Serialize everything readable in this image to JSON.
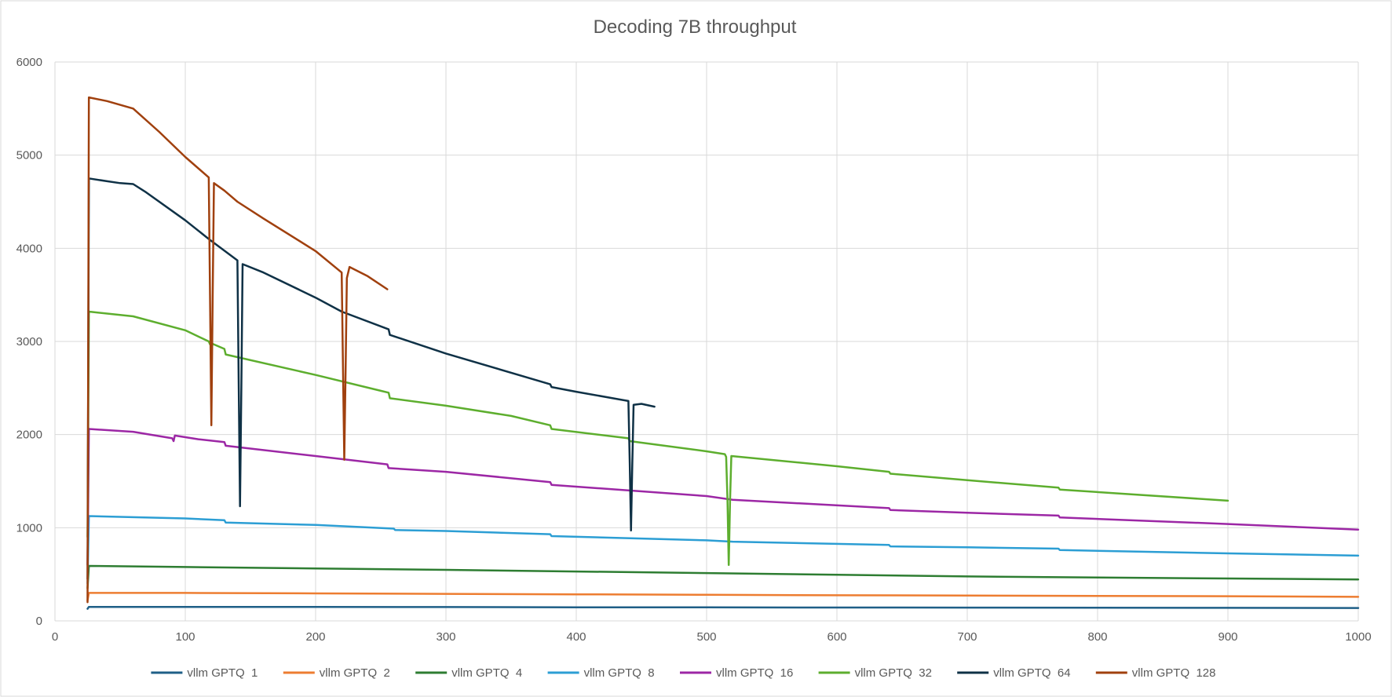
{
  "chart_data": {
    "type": "line",
    "title": "Decoding 7B throughput",
    "xlabel": "",
    "ylabel": "",
    "xlim": [
      0,
      1000
    ],
    "ylim": [
      0,
      6000
    ],
    "x_ticks": [
      "0",
      "100",
      "200",
      "300",
      "400",
      "500",
      "600",
      "700",
      "800",
      "900",
      "1000"
    ],
    "y_ticks": [
      "0",
      "1000",
      "2000",
      "3000",
      "4000",
      "5000",
      "6000"
    ],
    "grid": true,
    "legend_position": "bottom",
    "series": [
      {
        "name": "vllm GPTQ  1",
        "color": "#1F5F87",
        "points": [
          [
            25,
            130
          ],
          [
            26,
            150
          ],
          [
            100,
            150
          ],
          [
            200,
            150
          ],
          [
            300,
            148
          ],
          [
            400,
            146
          ],
          [
            500,
            145
          ],
          [
            600,
            143
          ],
          [
            700,
            142
          ],
          [
            800,
            141
          ],
          [
            900,
            140
          ],
          [
            1000,
            138
          ]
        ]
      },
      {
        "name": "vllm GPTQ  2",
        "color": "#ED7D31",
        "points": [
          [
            25,
            220
          ],
          [
            26,
            300
          ],
          [
            100,
            300
          ],
          [
            200,
            295
          ],
          [
            300,
            290
          ],
          [
            400,
            285
          ],
          [
            500,
            280
          ],
          [
            600,
            275
          ],
          [
            700,
            272
          ],
          [
            800,
            268
          ],
          [
            900,
            265
          ],
          [
            1000,
            258
          ]
        ]
      },
      {
        "name": "vllm GPTQ  4",
        "color": "#2E7D32",
        "points": [
          [
            25,
            350
          ],
          [
            26,
            590
          ],
          [
            100,
            578
          ],
          [
            200,
            563
          ],
          [
            300,
            548
          ],
          [
            400,
            530
          ],
          [
            500,
            513
          ],
          [
            600,
            495
          ],
          [
            700,
            477
          ],
          [
            800,
            465
          ],
          [
            900,
            455
          ],
          [
            1000,
            445
          ]
        ]
      },
      {
        "name": "vllm GPTQ  8",
        "color": "#2C9ED4",
        "points": [
          [
            25,
            400
          ],
          [
            26,
            1125
          ],
          [
            100,
            1100
          ],
          [
            130,
            1080
          ],
          [
            131,
            1055
          ],
          [
            200,
            1030
          ],
          [
            260,
            990
          ],
          [
            261,
            975
          ],
          [
            300,
            965
          ],
          [
            380,
            930
          ],
          [
            381,
            910
          ],
          [
            500,
            865
          ],
          [
            520,
            850
          ],
          [
            640,
            815
          ],
          [
            641,
            800
          ],
          [
            700,
            790
          ],
          [
            770,
            775
          ],
          [
            771,
            760
          ],
          [
            900,
            725
          ],
          [
            1000,
            700
          ]
        ]
      },
      {
        "name": "vllm GPTQ  16",
        "color": "#9C27A5",
        "points": [
          [
            25,
            600
          ],
          [
            26,
            2060
          ],
          [
            60,
            2030
          ],
          [
            90,
            1960
          ],
          [
            91,
            1930
          ],
          [
            92,
            1990
          ],
          [
            110,
            1950
          ],
          [
            130,
            1920
          ],
          [
            131,
            1880
          ],
          [
            200,
            1770
          ],
          [
            255,
            1680
          ],
          [
            256,
            1640
          ],
          [
            300,
            1600
          ],
          [
            380,
            1490
          ],
          [
            381,
            1460
          ],
          [
            500,
            1340
          ],
          [
            520,
            1300
          ],
          [
            640,
            1210
          ],
          [
            641,
            1190
          ],
          [
            700,
            1160
          ],
          [
            770,
            1130
          ],
          [
            771,
            1110
          ],
          [
            900,
            1040
          ],
          [
            1000,
            980
          ]
        ]
      },
      {
        "name": "vllm GPTQ  32",
        "color": "#5DAE2E",
        "points": [
          [
            25,
            900
          ],
          [
            26,
            3320
          ],
          [
            60,
            3270
          ],
          [
            100,
            3120
          ],
          [
            118,
            3000
          ],
          [
            119,
            2970
          ],
          [
            120,
            2980
          ],
          [
            130,
            2920
          ],
          [
            131,
            2860
          ],
          [
            200,
            2640
          ],
          [
            250,
            2470
          ],
          [
            256,
            2450
          ],
          [
            257,
            2390
          ],
          [
            300,
            2310
          ],
          [
            350,
            2200
          ],
          [
            380,
            2100
          ],
          [
            381,
            2060
          ],
          [
            440,
            1960
          ],
          [
            441,
            1930
          ],
          [
            500,
            1820
          ],
          [
            514,
            1790
          ],
          [
            515,
            1760
          ],
          [
            516,
            1300
          ],
          [
            517,
            600
          ],
          [
            518,
            1300
          ],
          [
            519,
            1770
          ],
          [
            600,
            1660
          ],
          [
            640,
            1600
          ],
          [
            641,
            1580
          ],
          [
            700,
            1510
          ],
          [
            770,
            1430
          ],
          [
            771,
            1410
          ],
          [
            900,
            1290
          ]
        ]
      },
      {
        "name": "vllm GPTQ  64",
        "color": "#0F3146",
        "points": [
          [
            25,
            450
          ],
          [
            26,
            4750
          ],
          [
            40,
            4720
          ],
          [
            50,
            4700
          ],
          [
            60,
            4690
          ],
          [
            70,
            4600
          ],
          [
            100,
            4300
          ],
          [
            118,
            4100
          ],
          [
            140,
            3870
          ],
          [
            141,
            2500
          ],
          [
            142,
            1230
          ],
          [
            143,
            2500
          ],
          [
            144,
            3830
          ],
          [
            160,
            3740
          ],
          [
            200,
            3470
          ],
          [
            220,
            3320
          ],
          [
            256,
            3130
          ],
          [
            257,
            3070
          ],
          [
            300,
            2870
          ],
          [
            380,
            2540
          ],
          [
            381,
            2510
          ],
          [
            400,
            2460
          ],
          [
            440,
            2360
          ],
          [
            441,
            1700
          ],
          [
            442,
            970
          ],
          [
            443,
            1700
          ],
          [
            444,
            2320
          ],
          [
            450,
            2330
          ],
          [
            460,
            2300
          ]
        ]
      },
      {
        "name": "vllm GPTQ  128",
        "color": "#A0400E",
        "points": [
          [
            25,
            200
          ],
          [
            26,
            5620
          ],
          [
            40,
            5580
          ],
          [
            60,
            5500
          ],
          [
            80,
            5250
          ],
          [
            100,
            4980
          ],
          [
            118,
            4760
          ],
          [
            119,
            3500
          ],
          [
            120,
            2100
          ],
          [
            121,
            3500
          ],
          [
            122,
            4700
          ],
          [
            130,
            4620
          ],
          [
            140,
            4500
          ],
          [
            160,
            4320
          ],
          [
            200,
            3970
          ],
          [
            220,
            3740
          ],
          [
            221,
            2700
          ],
          [
            222,
            1730
          ],
          [
            223,
            2700
          ],
          [
            224,
            3680
          ],
          [
            226,
            3800
          ],
          [
            240,
            3700
          ],
          [
            255,
            3560
          ]
        ]
      }
    ]
  }
}
